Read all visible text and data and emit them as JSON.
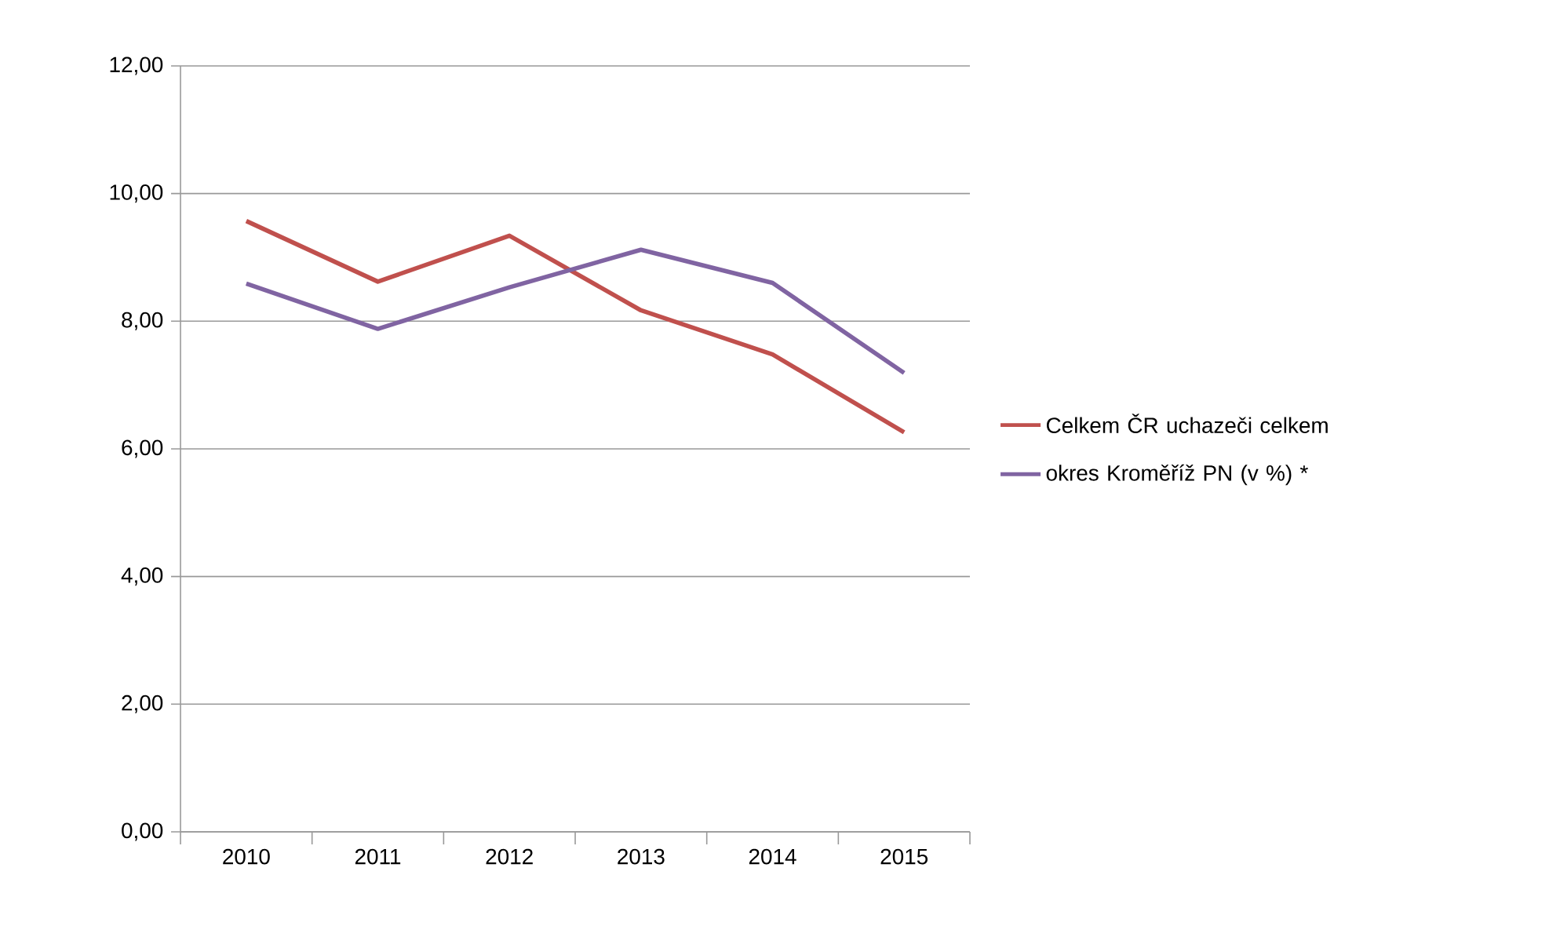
{
  "chart_data": {
    "type": "line",
    "categories": [
      "2010",
      "2011",
      "2012",
      "2013",
      "2014",
      "2015"
    ],
    "series": [
      {
        "name": "Celkem ČR uchazeči celkem",
        "color": "#c0504d",
        "values": [
          9.57,
          8.62,
          9.34,
          8.17,
          7.48,
          6.26
        ]
      },
      {
        "name": "okres Kroměříž   PN (v %) *",
        "color": "#8064a2",
        "values": [
          8.59,
          7.88,
          8.53,
          9.12,
          8.6,
          7.19
        ]
      }
    ],
    "ylim": [
      0,
      12
    ],
    "yticks": [
      {
        "value": 0,
        "label": "0,00"
      },
      {
        "value": 2,
        "label": "2,00"
      },
      {
        "value": 4,
        "label": "4,00"
      },
      {
        "value": 6,
        "label": "6,00"
      },
      {
        "value": 8,
        "label": "8,00"
      },
      {
        "value": 10,
        "label": "10,00"
      },
      {
        "value": 12,
        "label": "12,00"
      }
    ],
    "grid": "y",
    "legend": "right",
    "marker": "none",
    "line_style": "solid"
  }
}
